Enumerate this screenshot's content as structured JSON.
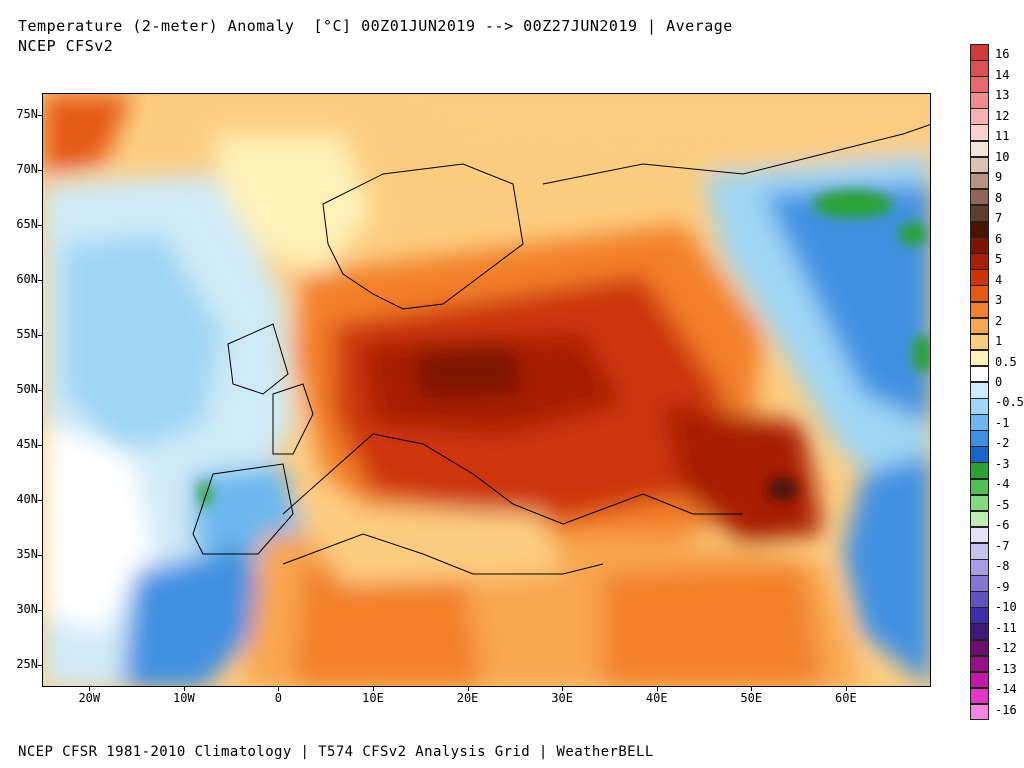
{
  "header": {
    "title_line1": "Temperature (2-meter) Anomaly  [°C] 00Z01JUN2019 --> 00Z27JUN2019 | Average",
    "title_line2": "NCEP CFSv2"
  },
  "footer": "NCEP CFSR 1981-2010 Climatology | T574 CFSv2 Analysis Grid | WeatherBELL",
  "map": {
    "latitudes": [
      "75N",
      "70N",
      "65N",
      "60N",
      "55N",
      "50N",
      "45N",
      "40N",
      "35N",
      "30N",
      "25N"
    ],
    "longitudes": [
      "20W",
      "10W",
      "0",
      "10E",
      "20E",
      "30E",
      "40E",
      "50E",
      "60E"
    ],
    "extent": {
      "lon_min": -25,
      "lon_max": 69,
      "lat_min": 23,
      "lat_max": 77
    }
  },
  "colorbar": {
    "labels": [
      "16",
      "14",
      "13",
      "12",
      "11",
      "10",
      "9",
      "8",
      "7",
      "6",
      "5",
      "4",
      "3",
      "2",
      "1",
      "0.5",
      "0",
      "-0.5",
      "-1",
      "-2",
      "-3",
      "-4",
      "-5",
      "-6",
      "-7",
      "-8",
      "-9",
      "-10",
      "-11",
      "-12",
      "-13",
      "-14",
      "-16"
    ],
    "colors": [
      "#d13a3a",
      "#de4f54",
      "#e66a70",
      "#ee8c90",
      "#f5b1b3",
      "#fad0cf",
      "#f4e4de",
      "#d8c2b7",
      "#b89384",
      "#8e6557",
      "#5e3d33",
      "#4b1208",
      "#7c1505",
      "#a81f06",
      "#cd3408",
      "#e45a12",
      "#f2802c",
      "#f8a650",
      "#fccd80",
      "#fff0b8",
      "#ffffff",
      "#cfeaf8",
      "#9fd6f5",
      "#6cb8ee",
      "#3f90e2",
      "#1b64d0",
      "#2aa235",
      "#52bf55",
      "#86d97f",
      "#bfecb3",
      "#e3e2f6",
      "#c6c2ee",
      "#a69de3",
      "#8477d4",
      "#5f52c0",
      "#3b2ea8",
      "#3d1a7a",
      "#6a0f6e",
      "#941286",
      "#bf1aa5",
      "#e236c7",
      "#f486e0"
    ]
  }
}
